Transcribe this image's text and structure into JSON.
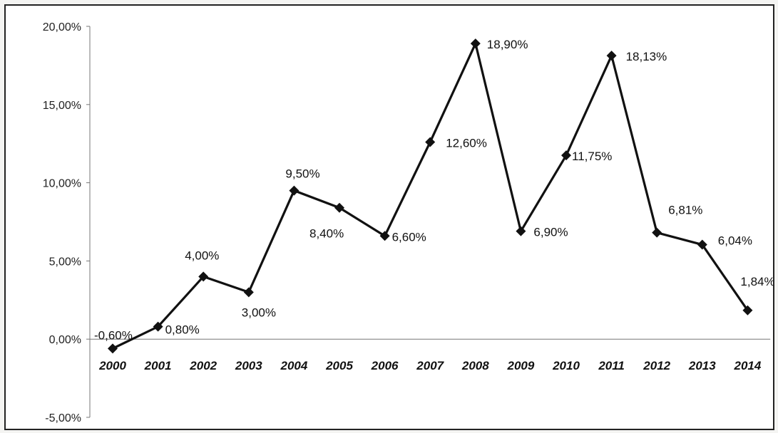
{
  "chart_data": {
    "type": "line",
    "title": "",
    "xlabel": "",
    "ylabel": "",
    "ylim": [
      -5,
      20
    ],
    "yticks": [
      {
        "value": 20,
        "label": "20,00%"
      },
      {
        "value": 15,
        "label": "15,00%"
      },
      {
        "value": 10,
        "label": "10,00%"
      },
      {
        "value": 5,
        "label": "5,00%"
      },
      {
        "value": 0,
        "label": "0,00%"
      },
      {
        "value": -5,
        "label": "-5,00%"
      }
    ],
    "categories": [
      "2000",
      "2001",
      "2002",
      "2003",
      "2004",
      "2005",
      "2006",
      "2007",
      "2008",
      "2009",
      "2010",
      "2011",
      "2012",
      "2013",
      "2014"
    ],
    "series": [
      {
        "values": [
          -0.6,
          0.8,
          4.0,
          3.0,
          9.5,
          8.4,
          6.6,
          12.6,
          18.9,
          6.9,
          11.75,
          18.13,
          6.81,
          6.04,
          1.84
        ],
        "labels": [
          "-0,60%",
          "0,80%",
          "4,00%",
          "3,00%",
          "9,50%",
          "8,40%",
          "6,60%",
          "12,60%",
          "18,90%",
          "6,90%",
          "11,75%",
          "18,13%",
          "6,81%",
          "6,04%",
          "1,84%"
        ],
        "color": "#111111",
        "marker": "diamond"
      }
    ],
    "grid": false,
    "legend": "none"
  }
}
